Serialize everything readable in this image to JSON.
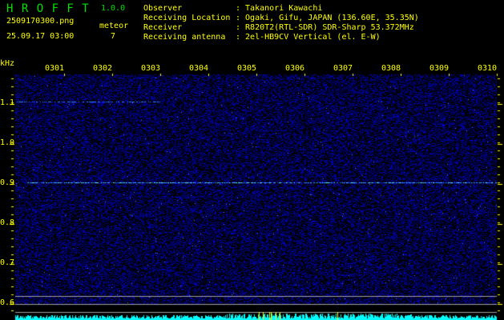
{
  "header": {
    "logo": "H R O F F T",
    "version": "1.0.0",
    "filename": "2509170300.png",
    "datetime": "25.09.17 03:00",
    "meteor_label": "meteor",
    "meteor_count": "7"
  },
  "info": {
    "labels": [
      "Observer",
      "Receiving Location",
      "Receiver",
      "Receiving antenna"
    ],
    "values": [
      ": Takanori Kawachi",
      ": Ogaki, Gifu, JAPAN (136.60E, 35.35N)",
      ": R820T2(RTL-SDR) SDR-Sharp 53.372MHz",
      ": 2el-HB9CV Vertical (el. E-W)"
    ]
  },
  "axis": {
    "unit": "kHz",
    "time_labels": [
      "0301",
      "0302",
      "0303",
      "0304",
      "0305",
      "0306",
      "0307",
      "0308",
      "0309",
      "0310"
    ],
    "freq_labels": [
      "1.1",
      "1.0",
      "0.9",
      "0.8",
      "0.7",
      "0.6"
    ]
  },
  "colors": {
    "text": "#ffff00",
    "logo": "#00e000",
    "noise": "#1010c0",
    "signal": "#40e0ff",
    "level": "#00ffff",
    "marker": "#ffff00",
    "line": "#a0a0a0"
  }
}
